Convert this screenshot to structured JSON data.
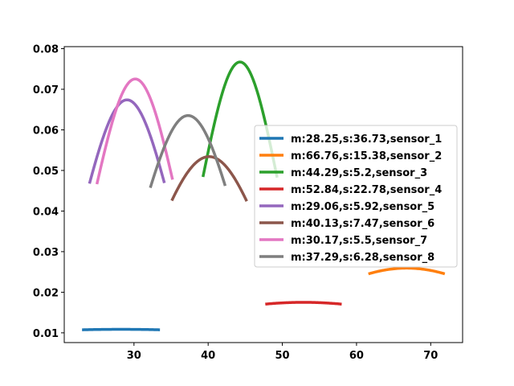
{
  "chart_data": {
    "type": "line",
    "title": "",
    "xlabel": "",
    "ylabel": "",
    "xlim": [
      20.6,
      74.3
    ],
    "ylim": [
      0.0076,
      0.0805
    ],
    "xticks": [
      30,
      40,
      50,
      60,
      70
    ],
    "xtick_labels": [
      "30",
      "40",
      "50",
      "60",
      "70"
    ],
    "yticks": [
      0.01,
      0.02,
      0.03,
      0.04,
      0.05,
      0.06,
      0.07,
      0.08
    ],
    "ytick_labels": [
      "0.01",
      "0.02",
      "0.03",
      "0.04",
      "0.05",
      "0.06",
      "0.07",
      "0.08"
    ],
    "grid": false,
    "legend_position": "center-right",
    "series": [
      {
        "name": "m:28.25,s:36.73,sensor_1",
        "color": "#1f77b4",
        "mean": 28.25,
        "std": 36.73,
        "x_range": [
          23.0,
          33.5
        ]
      },
      {
        "name": "m:66.76,s:15.38,sensor_2",
        "color": "#ff7f0e",
        "mean": 66.76,
        "std": 15.38,
        "x_range": [
          61.6,
          71.9
        ]
      },
      {
        "name": "m:44.29,s:5.2,sensor_3",
        "color": "#2ca02c",
        "mean": 44.29,
        "std": 5.2,
        "x_range": [
          39.3,
          49.3
        ]
      },
      {
        "name": "m:52.84,s:22.78,sensor_4",
        "color": "#d62728",
        "mean": 52.84,
        "std": 22.78,
        "x_range": [
          47.7,
          58.0
        ]
      },
      {
        "name": "m:29.06,s:5.92,sensor_5",
        "color": "#9467bd",
        "mean": 29.06,
        "std": 5.92,
        "x_range": [
          24.0,
          34.1
        ]
      },
      {
        "name": "m:40.13,s:7.47,sensor_6",
        "color": "#8c564b",
        "mean": 40.13,
        "std": 7.47,
        "x_range": [
          35.1,
          45.2
        ]
      },
      {
        "name": "m:30.17,s:5.5,sensor_7",
        "color": "#e377c2",
        "mean": 30.17,
        "std": 5.5,
        "x_range": [
          25.0,
          35.2
        ]
      },
      {
        "name": "m:37.29,s:6.28,sensor_8",
        "color": "#7f7f7f",
        "mean": 37.29,
        "std": 6.28,
        "x_range": [
          32.2,
          42.3
        ]
      }
    ]
  }
}
